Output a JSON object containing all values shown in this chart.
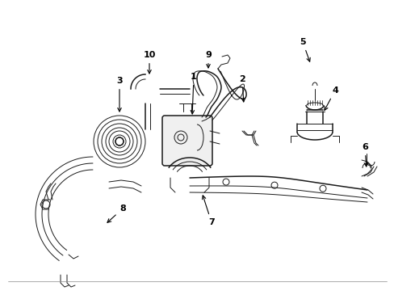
{
  "background_color": "#ffffff",
  "line_color": "#1a1a1a",
  "label_color": "#000000",
  "fig_width": 4.89,
  "fig_height": 3.6,
  "dpi": 100,
  "border_color": "#cccccc"
}
